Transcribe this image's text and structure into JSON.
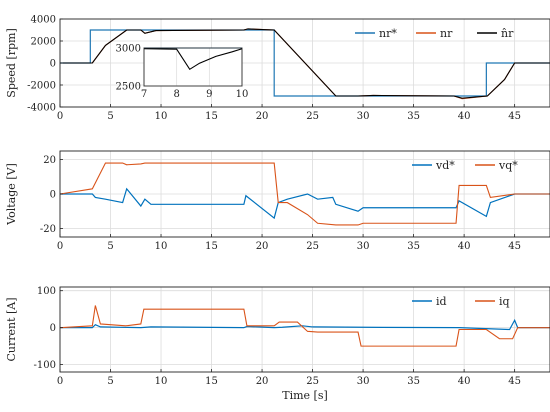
{
  "chart_data": [
    {
      "type": "line",
      "ylabel": "Speed [rpm]",
      "xlim": [
        0,
        48.5
      ],
      "ylim": [
        -4000,
        4000
      ],
      "xticks": [
        0,
        5,
        10,
        15,
        20,
        25,
        30,
        35,
        40,
        45
      ],
      "yticks": [
        -4000,
        -2000,
        0,
        2000,
        4000
      ],
      "grid": true,
      "legend_position": "top-right",
      "series": [
        {
          "name": "n_r*",
          "name_display": "nr*",
          "color": "#1f77b4",
          "x": [
            0,
            3.0,
            3.0,
            18.2,
            18.2,
            21.2,
            21.2,
            42.2,
            42.2,
            48.5
          ],
          "y": [
            0,
            0,
            3000,
            3000,
            3000,
            3000,
            -3000,
            -3000,
            0,
            0
          ]
        },
        {
          "name": "n_r",
          "name_display": "nr",
          "color": "#d95319",
          "x": [
            0,
            3.2,
            4.5,
            6.6,
            8.0,
            8.4,
            9.5,
            18.2,
            18.6,
            21.2,
            27.3,
            29.5,
            31,
            39,
            39.8,
            42.3,
            44,
            45,
            48.5
          ],
          "y": [
            0,
            0,
            1600,
            3000,
            3000,
            2700,
            2950,
            3000,
            3100,
            3000,
            -3000,
            -3000,
            -2950,
            -3000,
            -3250,
            -3000,
            -1500,
            0,
            0
          ]
        },
        {
          "name": "n_hat_r",
          "name_display": "n̂r",
          "color": "#000000",
          "x": [
            0,
            3.2,
            4.5,
            6.6,
            8.0,
            8.4,
            9.5,
            18.2,
            18.6,
            21.2,
            27.3,
            29.5,
            31,
            39,
            39.8,
            42.3,
            44,
            45,
            48.5
          ],
          "y": [
            0,
            0,
            1600,
            3000,
            3000,
            2700,
            2950,
            3000,
            3100,
            3000,
            -3000,
            -3000,
            -2950,
            -3000,
            -3200,
            -3000,
            -1500,
            0,
            0
          ]
        }
      ],
      "inset": {
        "xlim": [
          7,
          10
        ],
        "ylim": [
          2500,
          3000
        ],
        "xticks": [
          7,
          8,
          9,
          10
        ],
        "yticks": [
          2500,
          3000
        ],
        "series": [
          {
            "name": "n_r*",
            "x": [
              7,
              10
            ],
            "y": [
              3000,
              3000
            ],
            "color": "#1f77b4"
          },
          {
            "name": "n_hat_r",
            "x": [
              7,
              8.0,
              8.4,
              8.7,
              9.2,
              9.7,
              10
            ],
            "y": [
              2990,
              2985,
              2720,
              2800,
              2890,
              2950,
              2990
            ],
            "color": "#000000"
          }
        ]
      }
    },
    {
      "type": "line",
      "ylabel": "Voltage [V]",
      "xlim": [
        0,
        48.5
      ],
      "ylim": [
        -25,
        25
      ],
      "xticks": [
        0,
        5,
        10,
        15,
        20,
        25,
        30,
        35,
        40,
        45
      ],
      "yticks": [
        -20,
        0,
        20
      ],
      "grid": true,
      "legend_position": "top-right",
      "series": [
        {
          "name": "v_d*",
          "name_display": "vd*",
          "color": "#0072bd",
          "x": [
            0,
            3.2,
            3.5,
            4.5,
            6.2,
            6.6,
            8.0,
            8.4,
            9,
            18.2,
            18.4,
            21.2,
            21.6,
            22.5,
            24.5,
            25.5,
            27,
            27.3,
            29.5,
            30,
            39.2,
            39.5,
            42.2,
            42.6,
            45,
            48.5
          ],
          "y": [
            0,
            0,
            -2,
            -3,
            -5,
            3,
            -7,
            -3,
            -6,
            -6,
            -1,
            -14,
            -5,
            -3,
            0,
            -3,
            -2,
            -6,
            -10,
            -8,
            -8,
            -4,
            -13,
            -5,
            0,
            0
          ]
        },
        {
          "name": "v_q*",
          "name_display": "vq*",
          "color": "#d95319",
          "x": [
            0,
            3.2,
            4.5,
            6.2,
            6.6,
            8.0,
            8.4,
            18.2,
            18.4,
            21.2,
            21.6,
            22.5,
            24.5,
            25.5,
            27.3,
            27.8,
            29.5,
            30,
            39.2,
            39.5,
            42.2,
            42.6,
            45,
            48.5
          ],
          "y": [
            0,
            3,
            18,
            18,
            17,
            17.5,
            18,
            18,
            18,
            18,
            -5,
            -5,
            -12,
            -17,
            -18,
            -18,
            -18,
            -17,
            -17,
            5,
            5,
            -2,
            0,
            0
          ]
        }
      ]
    },
    {
      "type": "line",
      "ylabel": "Current [A]",
      "xlabel": "Time [s]",
      "xlim": [
        0,
        48.5
      ],
      "ylim": [
        -120,
        110
      ],
      "xticks": [
        0,
        5,
        10,
        15,
        20,
        25,
        30,
        35,
        40,
        45
      ],
      "yticks": [
        -100,
        0,
        100
      ],
      "grid": true,
      "legend_position": "top-right",
      "series": [
        {
          "name": "i_d",
          "name_display": "id",
          "color": "#0072bd",
          "x": [
            0,
            3.2,
            3.5,
            4,
            8,
            9,
            18.2,
            18.5,
            21.2,
            22,
            24,
            25,
            30,
            39.5,
            44.5,
            45,
            45.3,
            48.5
          ],
          "y": [
            0,
            0,
            8,
            2,
            0,
            2,
            0,
            3,
            0,
            1,
            5,
            2,
            1,
            0,
            -5,
            20,
            0,
            0
          ]
        },
        {
          "name": "i_q",
          "name_display": "iq",
          "color": "#d95319",
          "x": [
            0,
            3.2,
            3.5,
            4.0,
            6.5,
            8.0,
            8.3,
            18.2,
            18.5,
            21.2,
            21.7,
            23.5,
            24.5,
            25.5,
            29.5,
            29.8,
            39.2,
            39.5,
            42.2,
            43.5,
            44.8,
            45.3,
            48.5
          ],
          "y": [
            0,
            5,
            60,
            10,
            5,
            10,
            50,
            50,
            5,
            5,
            15,
            15,
            -10,
            -12,
            -12,
            -50,
            -50,
            -5,
            -5,
            -30,
            -30,
            0,
            0
          ]
        }
      ]
    }
  ]
}
